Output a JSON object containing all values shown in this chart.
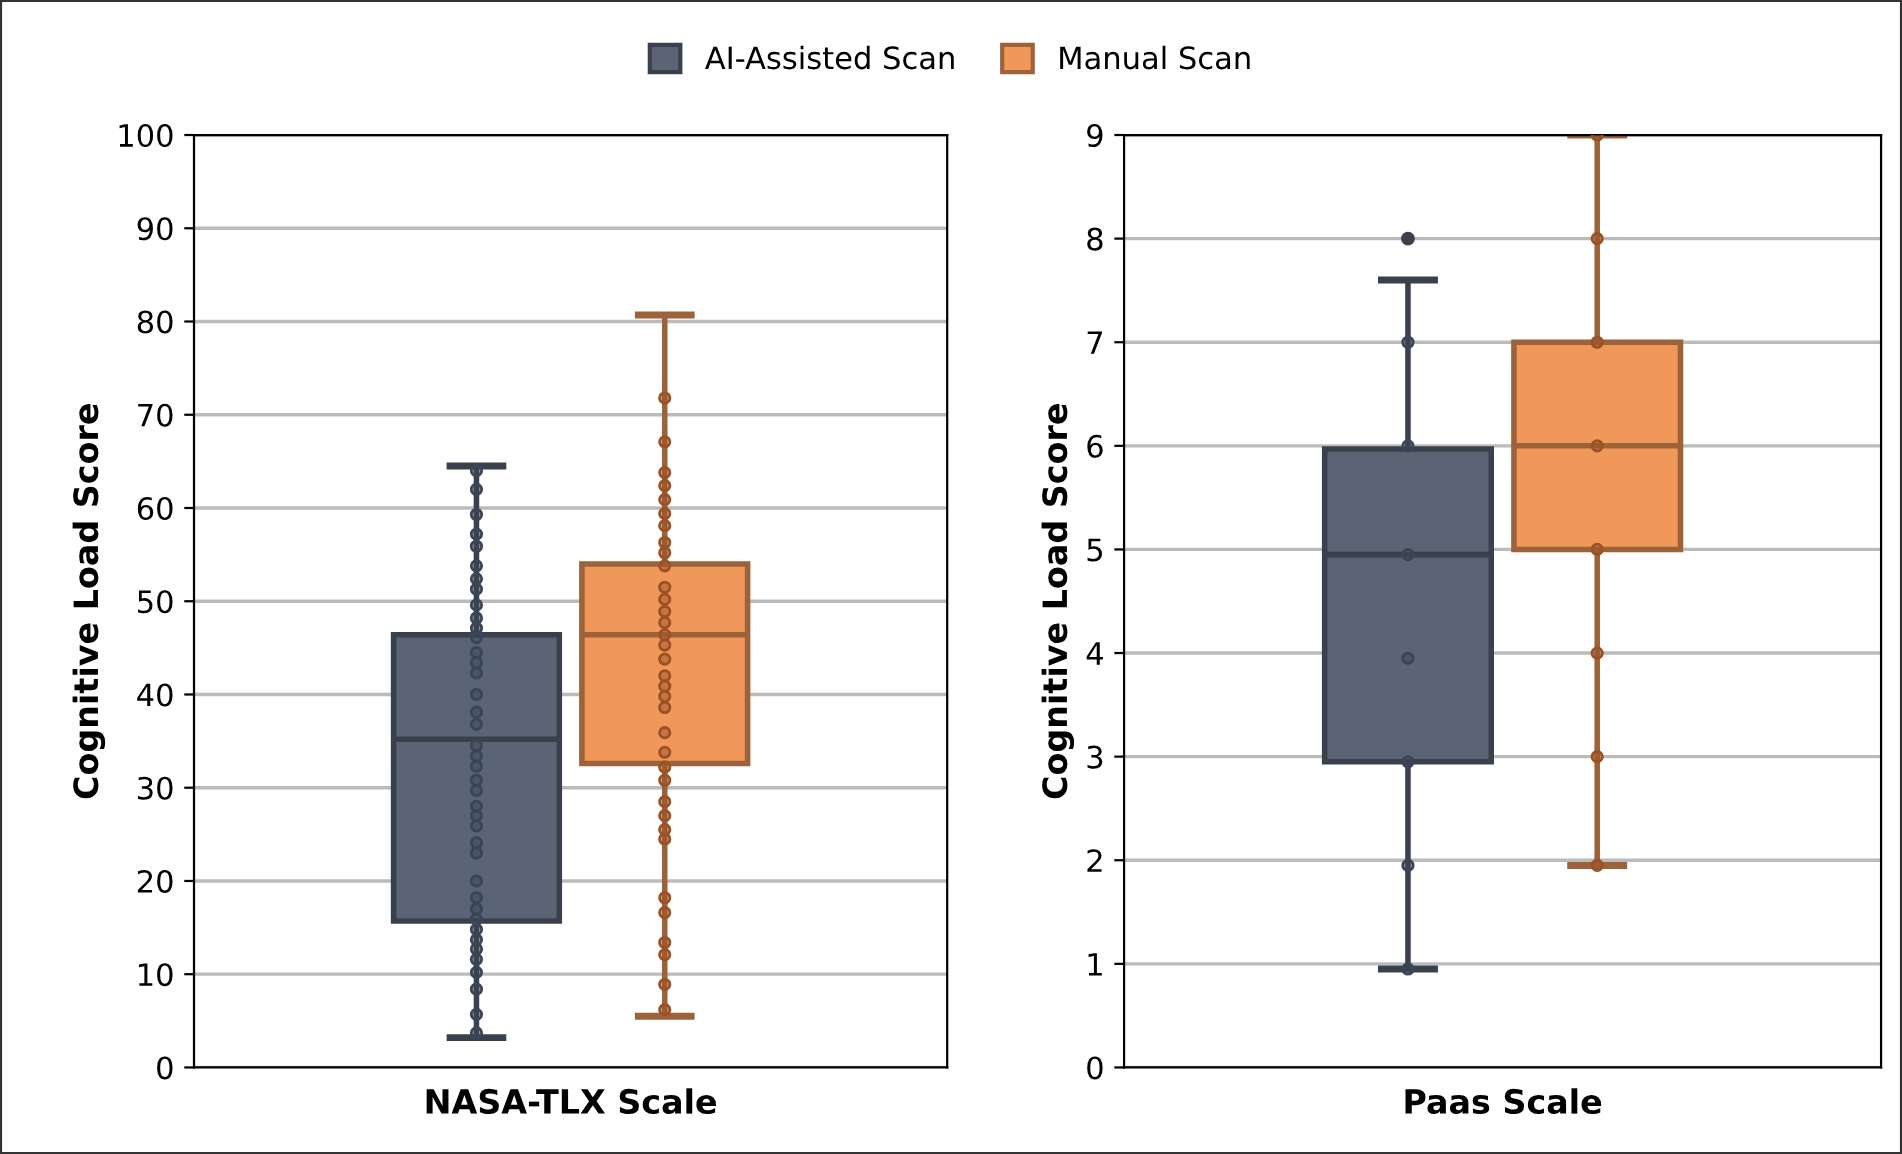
{
  "chart_data": [
    {
      "type": "box",
      "categories": [
        null
      ],
      "xlabel": "NASA-TLX Scale",
      "ylabel": "Cognitive Load Score",
      "ylim": [
        0,
        100
      ],
      "yticks": [
        0,
        10,
        20,
        30,
        40,
        50,
        60,
        70,
        80,
        90,
        100
      ],
      "grid": "y",
      "legend": "top",
      "series": [
        {
          "name": "AI-Assisted Scan",
          "color": "#5a6475",
          "boxes": [
            {
              "low": 3.2,
              "q1": 15.7,
              "median": 35.2,
              "q3": 46.4,
              "high": 64.5
            }
          ]
        },
        {
          "name": "Manual Scan",
          "color": "#f0985a",
          "boxes": [
            {
              "low": 5.5,
              "q1": 32.6,
              "median": 46.4,
              "q3": 54.0,
              "high": 80.7
            }
          ]
        },
        {
          "type": "scatter",
          "color": "#3b4558",
          "x": [
            null,
            null,
            null,
            null,
            null,
            null,
            null,
            null,
            null,
            null,
            null,
            null,
            null,
            null,
            null,
            null,
            null,
            null,
            null,
            null,
            null,
            null,
            null,
            null,
            null,
            null,
            null,
            null,
            null,
            null,
            null,
            null,
            null,
            null,
            null,
            null,
            null,
            null,
            null,
            null
          ],
          "values": [
            64.0,
            62.0,
            59.3,
            57.2,
            55.9,
            53.8,
            52.4,
            51.3,
            49.6,
            48.2,
            47.1,
            46.1,
            44.5,
            43.4,
            42.3,
            40.0,
            38.1,
            36.8,
            34.5,
            33.4,
            32.3,
            30.8,
            29.7,
            28.0,
            27.0,
            25.9,
            24.1,
            23.0,
            20.0,
            18.2,
            17.0,
            15.9,
            14.8,
            13.7,
            12.7,
            11.6,
            10.2,
            8.4,
            5.7,
            3.7
          ]
        },
        {
          "type": "scatter",
          "color": "#9c5125",
          "x": [
            null,
            null,
            null,
            null,
            null,
            null,
            null,
            null,
            null,
            null,
            null,
            null,
            null,
            null,
            null,
            null,
            null,
            null,
            null,
            null,
            null,
            null,
            null,
            null,
            null,
            null,
            null,
            null,
            null,
            null,
            null,
            null,
            null,
            null,
            null
          ],
          "values": [
            71.8,
            67.1,
            63.8,
            62.4,
            60.9,
            59.4,
            58.1,
            56.3,
            55.2,
            53.8,
            51.5,
            50.2,
            48.9,
            47.7,
            46.4,
            45.3,
            43.8,
            42.0,
            40.9,
            39.8,
            38.6,
            35.9,
            33.8,
            32.2,
            30.8,
            28.5,
            27.0,
            25.5,
            24.5,
            18.2,
            16.6,
            13.4,
            12.1,
            8.9,
            6.2
          ]
        }
      ]
    },
    {
      "type": "box",
      "categories": [
        null
      ],
      "xlabel": "Paas Scale",
      "ylabel": "Cognitive Load Score",
      "ylim": [
        0,
        9
      ],
      "yticks": [
        0,
        1,
        2,
        3,
        4,
        5,
        6,
        7,
        8,
        9
      ],
      "grid": "y",
      "series": [
        {
          "color": "#5a6475",
          "boxes": [
            {
              "low": 0.95,
              "q1": 2.95,
              "median": 4.95,
              "q3": 5.97,
              "high": 7.6,
              "outliers": [
                8
              ]
            }
          ]
        },
        {
          "color": "#f0985a",
          "boxes": [
            {
              "low": 1.95,
              "q1": 5.0,
              "median": 6.0,
              "q3": 7.0,
              "high": 9.0
            }
          ]
        },
        {
          "type": "scatter",
          "color": "#3b4558",
          "x": [
            null,
            null,
            null,
            null,
            null,
            null,
            null
          ],
          "values": [
            0.95,
            1.95,
            2.95,
            3.95,
            4.95,
            6.0,
            7.0
          ]
        },
        {
          "type": "scatter",
          "color": "#9c5125",
          "x": [
            null,
            null,
            null,
            null,
            null,
            null,
            null,
            null
          ],
          "values": [
            1.95,
            3.0,
            4.0,
            5.0,
            6.0,
            7.0,
            8.0,
            9.0
          ]
        }
      ]
    }
  ]
}
